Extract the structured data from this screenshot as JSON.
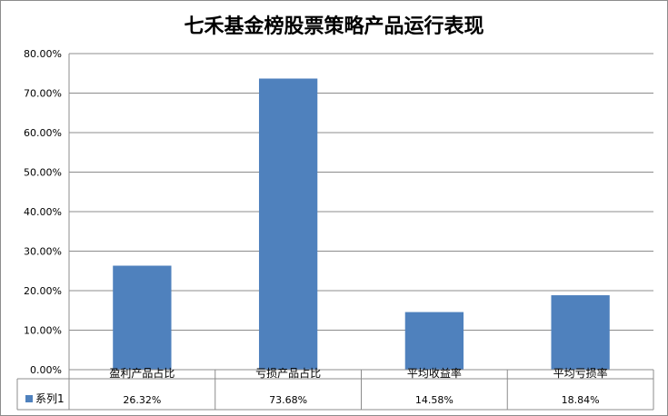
{
  "chart_data": {
    "type": "bar",
    "title": "七禾基金榜股票策略产品运行表现",
    "categories": [
      "盈利产品占比",
      "亏损产品占比",
      "平均收益率",
      "平均亏损率"
    ],
    "series": [
      {
        "name": "系列1",
        "values": [
          26.32,
          73.68,
          14.58,
          18.84
        ],
        "value_labels": [
          "26.32%",
          "73.68%",
          "14.58%",
          "18.84%"
        ],
        "color": "#4f81bd"
      }
    ],
    "ylim": [
      0,
      80
    ],
    "yticks": [
      "0.00%",
      "10.00%",
      "20.00%",
      "30.00%",
      "40.00%",
      "50.00%",
      "60.00%",
      "70.00%",
      "80.00%"
    ],
    "ytick_values": [
      0,
      10,
      20,
      30,
      40,
      50,
      60,
      70,
      80
    ],
    "grid": true,
    "legend": "data-table"
  }
}
